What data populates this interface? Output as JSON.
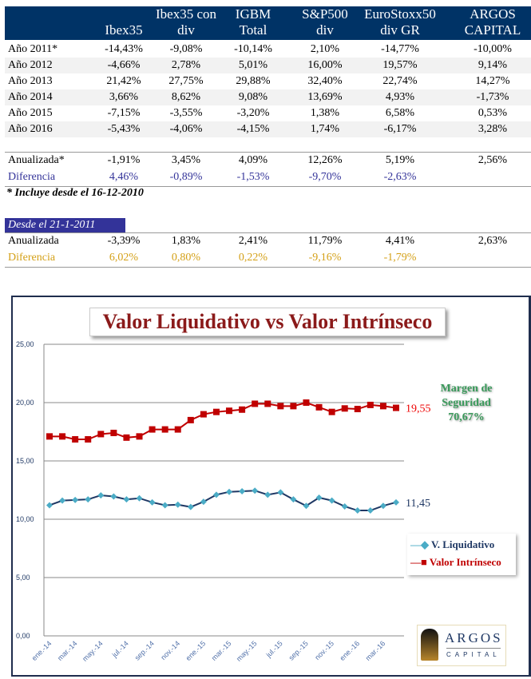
{
  "table": {
    "headers": [
      [
        "",
        "Ibex35"
      ],
      [
        "Ibex35 con",
        "div"
      ],
      [
        "IGBM",
        "Total"
      ],
      [
        "S&P500",
        "div"
      ],
      [
        "EuroStoxx50",
        "div GR"
      ],
      [
        "ARGOS",
        "CAPITAL"
      ]
    ],
    "rows": [
      {
        "label": "Año 2011*",
        "values": [
          "-14,43%",
          "-9,08%",
          "-10,14%",
          "2,10%",
          "-14,77%",
          "-10,00%"
        ]
      },
      {
        "label": "Año 2012",
        "values": [
          "-4,66%",
          "2,78%",
          "5,01%",
          "16,00%",
          "19,57%",
          "9,14%"
        ]
      },
      {
        "label": "Año 2013",
        "values": [
          "21,42%",
          "27,75%",
          "29,88%",
          "32,40%",
          "22,74%",
          "14,27%"
        ]
      },
      {
        "label": "Año 2014",
        "values": [
          "3,66%",
          "8,62%",
          "9,08%",
          "13,69%",
          "4,93%",
          "-1,73%"
        ]
      },
      {
        "label": "Año 2015",
        "values": [
          "-7,15%",
          "-3,55%",
          "-3,20%",
          "1,38%",
          "6,58%",
          "0,53%"
        ]
      },
      {
        "label": "Año 2016",
        "values": [
          "-5,43%",
          "-4,06%",
          "-4,15%",
          "1,74%",
          "-6,17%",
          "3,28%"
        ]
      }
    ],
    "summary1": [
      {
        "label": "Anualizada*",
        "values": [
          "-1,91%",
          "3,45%",
          "4,09%",
          "12,26%",
          "5,19%",
          "2,56%"
        ]
      },
      {
        "label": "Diferencia",
        "values": [
          "4,46%",
          "-0,89%",
          "-1,53%",
          "-9,70%",
          "-2,63%",
          ""
        ]
      }
    ],
    "footnote": "* Incluye desde el 16-12-2010",
    "section2_label": "Desde el 21-1-2011",
    "summary2": [
      {
        "label": "Anualizada",
        "values": [
          "-3,39%",
          "1,83%",
          "2,41%",
          "11,79%",
          "4,41%",
          "2,63%"
        ]
      },
      {
        "label": "Diferencia",
        "values": [
          "6,02%",
          "0,80%",
          "0,22%",
          "-9,16%",
          "-1,79%",
          ""
        ]
      }
    ],
    "colors": {
      "header": "#003366",
      "section2": "#333399",
      "diff1": "#333399",
      "diff2": "#d4a017"
    }
  },
  "chart_data": {
    "type": "line",
    "title": "Valor Liquidativo vs Valor Intrínseco",
    "ylim": [
      0,
      25
    ],
    "yticks": [
      "0,00",
      "5,00",
      "10,00",
      "15,00",
      "20,00",
      "25,00"
    ],
    "ytick_values": [
      0,
      5,
      10,
      15,
      20,
      25
    ],
    "xtick_labels": [
      "ene.-14",
      "mar.-14",
      "may.-14",
      "jul.-14",
      "sep.-14",
      "nov.-14",
      "ene.-15",
      "mar.-15",
      "may.-15",
      "jul.-15",
      "sep.-15",
      "nov.-15",
      "ene.-16",
      "mar.-16"
    ],
    "x": [
      "ene.-14",
      "feb.-14",
      "mar.-14",
      "abr.-14",
      "may.-14",
      "jun.-14",
      "jul.-14",
      "ago.-14",
      "sep.-14",
      "oct.-14",
      "nov.-14",
      "dic.-14",
      "ene.-15",
      "feb.-15",
      "mar.-15",
      "abr.-15",
      "may.-15",
      "jun.-15",
      "jul.-15",
      "ago.-15",
      "sep.-15",
      "oct.-15",
      "nov.-15",
      "dic.-15",
      "ene.-16",
      "feb.-16",
      "mar.-16",
      "abr.-16"
    ],
    "grid": true,
    "legend": "right",
    "series": [
      {
        "name": "V. Liquidativo",
        "color": "#1f3864",
        "marker_color": "#4bacc6",
        "marker": "diamond",
        "end_label": "11,45",
        "values": [
          11.2,
          11.6,
          11.65,
          11.7,
          12.05,
          11.95,
          11.7,
          11.8,
          11.45,
          11.2,
          11.25,
          11.05,
          11.5,
          12.1,
          12.35,
          12.4,
          12.45,
          12.1,
          12.3,
          11.7,
          11.15,
          11.85,
          11.6,
          11.1,
          10.75,
          10.75,
          11.15,
          11.45
        ]
      },
      {
        "name": "Valor Intrínseco",
        "color": "#c00000",
        "marker": "square",
        "end_label": "19,55",
        "values": [
          17.1,
          17.1,
          16.85,
          16.85,
          17.3,
          17.4,
          17.0,
          17.1,
          17.7,
          17.7,
          17.7,
          18.5,
          19.0,
          19.2,
          19.3,
          19.4,
          19.9,
          19.9,
          19.7,
          19.7,
          20.0,
          19.6,
          19.2,
          19.5,
          19.45,
          19.8,
          19.7,
          19.55
        ]
      }
    ],
    "annotation": [
      "Margen de",
      "Seguridad",
      "70,67%"
    ],
    "logo": [
      "ARGOS",
      "CAPITAL"
    ]
  }
}
